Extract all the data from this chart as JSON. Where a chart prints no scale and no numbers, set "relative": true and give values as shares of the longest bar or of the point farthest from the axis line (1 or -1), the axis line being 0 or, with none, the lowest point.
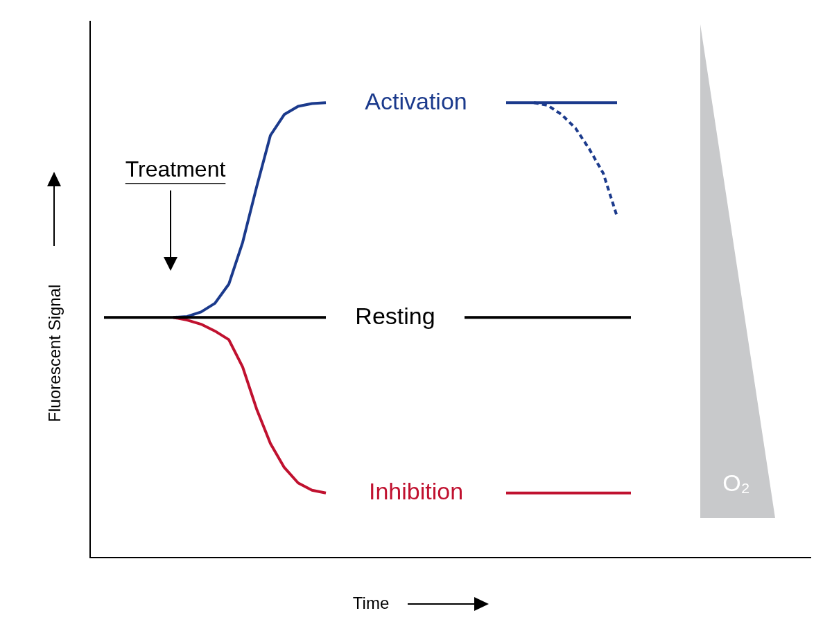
{
  "chart_data": {
    "type": "line",
    "relative": true,
    "xlabel": "Time",
    "ylabel": "Fluorescent Signal",
    "annotations": [
      "Treatment",
      "O₂"
    ],
    "categories": [
      null,
      null,
      null,
      null,
      null,
      null,
      null,
      null,
      null,
      null,
      null,
      null,
      null,
      null,
      null,
      null,
      null,
      null,
      null,
      null,
      null,
      null,
      null,
      null,
      null,
      null,
      null,
      null,
      null,
      null,
      null,
      null,
      null,
      null,
      null,
      null,
      null,
      null,
      null,
      null,
      null,
      null,
      null,
      null,
      null,
      null,
      null,
      null,
      null,
      null,
      null,
      null,
      null
    ],
    "series": [
      {
        "name": "Resting",
        "color": "#000000",
        "values": [
          null,
          0.528,
          0.528,
          0.528,
          0.528,
          0.528,
          0.528,
          0.528,
          0.528,
          0.528,
          0.528,
          0.528,
          0.528,
          0.528,
          0.528,
          0.528,
          0.528,
          0.528,
          null,
          null,
          null,
          null,
          null,
          null,
          null,
          null,
          null,
          null,
          null,
          null,
          null,
          null,
          null,
          null,
          null,
          null,
          null,
          null,
          null,
          null,
          null,
          null,
          null,
          null,
          null,
          null,
          null,
          null,
          null,
          null,
          null,
          null,
          null
        ]
      },
      {
        "color": "#000000",
        "values": [
          null,
          null,
          null,
          null,
          null,
          null,
          null,
          null,
          null,
          null,
          null,
          null,
          null,
          null,
          null,
          null,
          null,
          null,
          null,
          null,
          null,
          null,
          null,
          null,
          null,
          null,
          null,
          0.528,
          0.528,
          0.528,
          0.528,
          0.528,
          0.528,
          0.528,
          0.528,
          0.528,
          0.528,
          0.528,
          0.528,
          0.528,
          null,
          null,
          null,
          null,
          null,
          null,
          null,
          null,
          null,
          null,
          null,
          null,
          null
        ]
      },
      {
        "name": "Inhibition",
        "color": "#c0112f",
        "values": [
          null,
          null,
          null,
          null,
          null,
          null,
          0.528,
          0.522,
          0.513,
          0.498,
          0.479,
          0.419,
          0.327,
          0.251,
          0.198,
          0.164,
          0.148,
          0.142,
          null,
          null,
          null,
          null,
          null,
          null,
          null,
          null,
          null,
          null,
          null,
          null,
          null,
          null,
          null,
          null,
          null,
          null,
          null,
          null,
          null,
          null,
          null,
          null,
          null,
          null,
          null,
          null,
          null,
          null,
          null,
          null,
          null,
          null,
          null
        ]
      },
      {
        "color": "#c0112f",
        "values": [
          null,
          null,
          null,
          null,
          null,
          null,
          null,
          null,
          null,
          null,
          null,
          null,
          null,
          null,
          null,
          null,
          null,
          null,
          null,
          null,
          null,
          null,
          null,
          null,
          null,
          null,
          null,
          null,
          null,
          null,
          0.142,
          0.142,
          0.142,
          0.142,
          0.142,
          0.142,
          0.142,
          0.142,
          0.142,
          0.142,
          null,
          null,
          null,
          null,
          null,
          null,
          null,
          null,
          null,
          null,
          null,
          null,
          null
        ]
      },
      {
        "name": "Activation",
        "color": "#1b3a8c",
        "values": [
          null,
          null,
          null,
          null,
          null,
          null,
          0.528,
          0.53,
          0.54,
          0.559,
          0.601,
          0.693,
          0.814,
          0.928,
          0.974,
          0.992,
          0.998,
          1,
          null,
          null,
          null,
          null,
          null,
          null,
          null,
          null,
          null,
          null,
          null,
          null,
          null,
          null,
          null,
          null,
          null,
          null,
          null,
          null,
          null,
          null,
          null,
          null,
          null,
          null,
          null,
          null,
          null,
          null,
          null,
          null,
          null,
          null,
          null
        ]
      },
      {
        "color": "#1b3a8c",
        "values": [
          null,
          null,
          null,
          null,
          null,
          null,
          null,
          null,
          null,
          null,
          null,
          null,
          null,
          null,
          null,
          null,
          null,
          null,
          null,
          null,
          null,
          null,
          null,
          null,
          null,
          null,
          null,
          null,
          null,
          null,
          1,
          1,
          1,
          1,
          1,
          1,
          1,
          1,
          1,
          null,
          null,
          null,
          null,
          null,
          null,
          null,
          null,
          null,
          null,
          null,
          null,
          null,
          null
        ]
      },
      {
        "color": "#1b3a8c",
        "line_style": "dashed",
        "values": [
          null,
          null,
          null,
          null,
          null,
          null,
          null,
          null,
          null,
          null,
          null,
          null,
          null,
          null,
          null,
          null,
          null,
          null,
          null,
          null,
          null,
          null,
          null,
          null,
          null,
          null,
          null,
          null,
          null,
          null,
          null,
          null,
          1,
          0.994,
          0.974,
          0.944,
          0.898,
          0.845,
          0.75,
          null,
          null,
          null,
          null,
          null,
          null,
          null,
          null,
          null,
          null,
          null,
          null,
          null,
          null
        ]
      }
    ]
  }
}
